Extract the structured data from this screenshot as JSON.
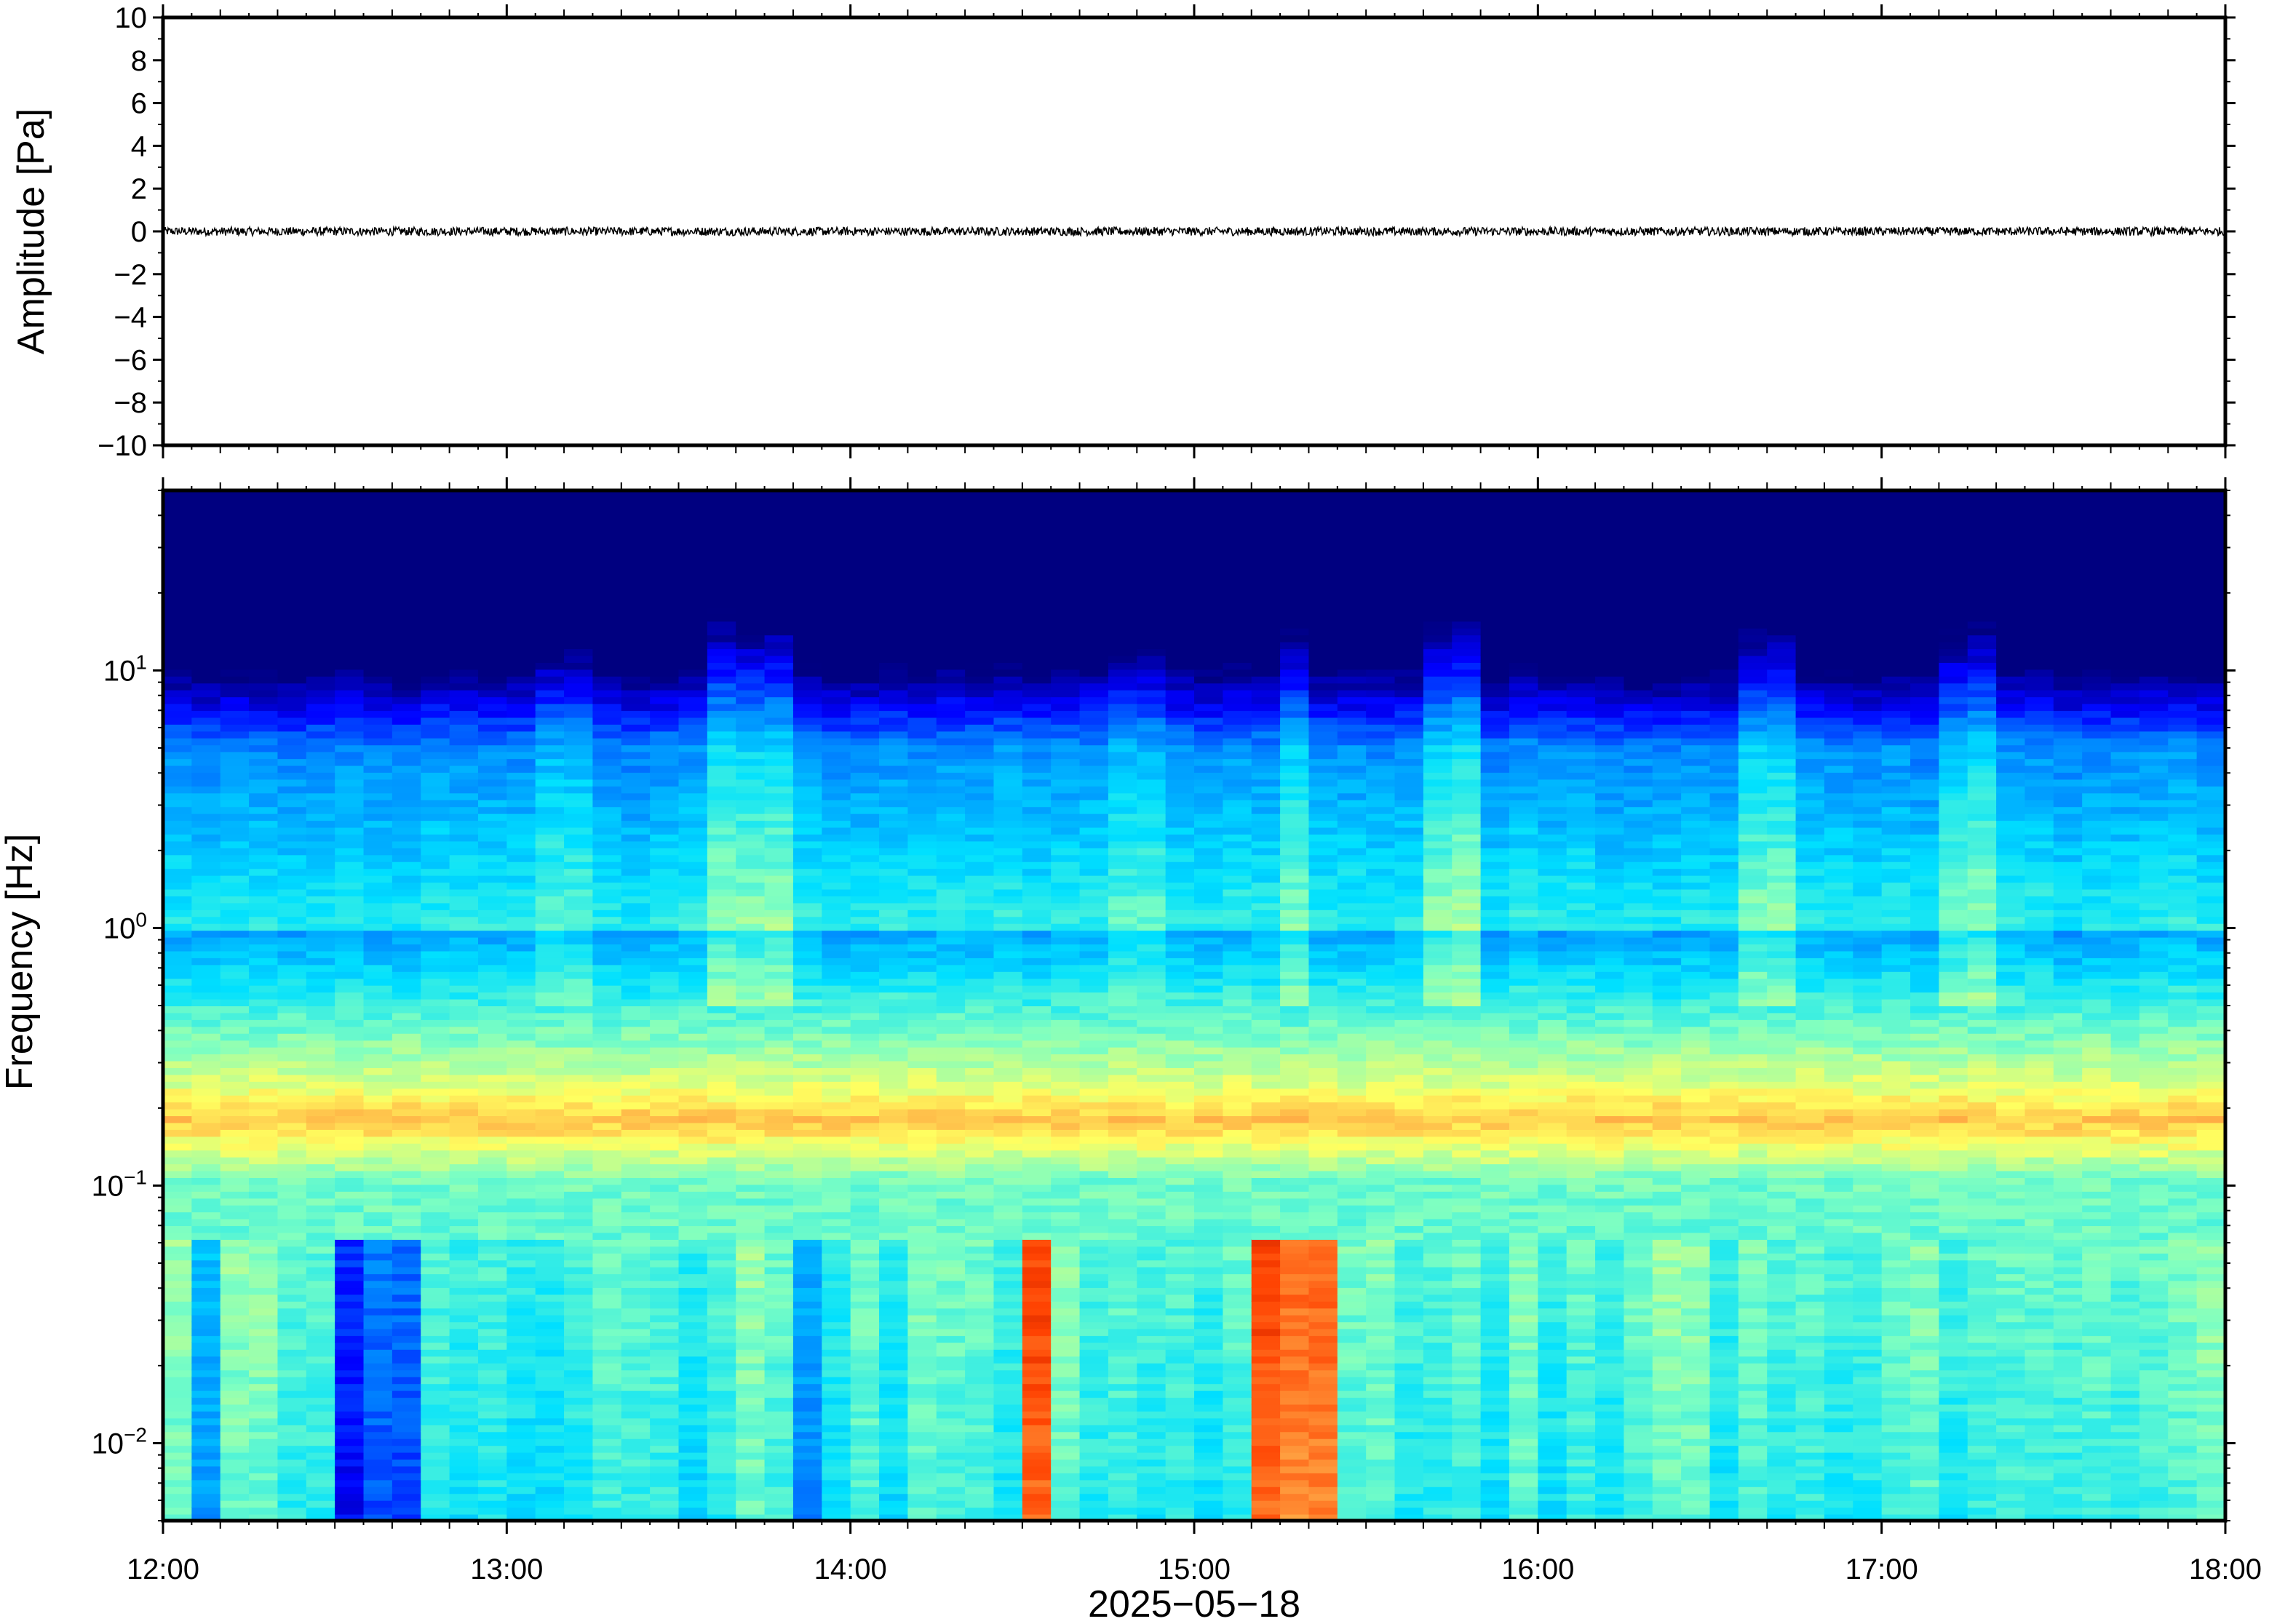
{
  "chart_data": [
    {
      "type": "line",
      "name": "waveform",
      "ylabel": "Amplitude [Pa]",
      "ylim": [
        -10,
        10
      ],
      "yticks": [
        10,
        8,
        6,
        4,
        2,
        0,
        -2,
        -4,
        -6,
        -8,
        -10
      ],
      "ytick_labels": [
        "10",
        "8",
        "6",
        "4",
        "2",
        "0",
        "−2",
        "−4",
        "−6",
        "−8",
        "−10"
      ],
      "xlim": [
        "12:00",
        "18:00"
      ],
      "signal": {
        "mean": 0,
        "peak_amplitude": 0.2
      },
      "line_color": "#000000"
    },
    {
      "type": "heatmap",
      "name": "spectrogram",
      "ylabel": "Frequency [Hz]",
      "yscale": "log",
      "ylim": [
        0.005,
        50
      ],
      "yticks": [
        0.01,
        0.1,
        1,
        10
      ],
      "ytick_labels": [
        {
          "base": "10",
          "exp": "−2"
        },
        {
          "base": "10",
          "exp": "−1"
        },
        {
          "base": "10",
          "exp": "0"
        },
        {
          "base": "10",
          "exp": "1"
        }
      ],
      "xlabel": "2025−05−18",
      "xlim": [
        "12:00",
        "18:00"
      ],
      "xticks": [
        "12:00",
        "13:00",
        "14:00",
        "15:00",
        "16:00",
        "17:00",
        "18:00"
      ],
      "colormap": "jet",
      "colormap_stops": [
        "#000080",
        "#0000ff",
        "#0080ff",
        "#00e0ff",
        "#80ffc0",
        "#ffff60",
        "#ffa040",
        "#ff4000",
        "#800000"
      ],
      "dominant_band_hz": [
        0.15,
        0.22
      ],
      "notable_features": [
        {
          "time": "13:30-13:50",
          "note": "elevated energy up to ~10 Hz"
        },
        {
          "time": "14:30-14:40",
          "note": "elevated low-frequency energy 0.02-0.05 Hz"
        },
        {
          "time": "15:15-15:30",
          "note": "elevated low-frequency energy 0.02-0.1 Hz"
        },
        {
          "time": "15:40-15:50",
          "note": "elevated energy up to ~10 Hz"
        },
        {
          "time": "16:35-16:45",
          "note": "elevated energy up to ~10 Hz"
        },
        {
          "time": "17:10-17:20",
          "note": "elevated energy up to ~10 Hz"
        }
      ]
    }
  ]
}
